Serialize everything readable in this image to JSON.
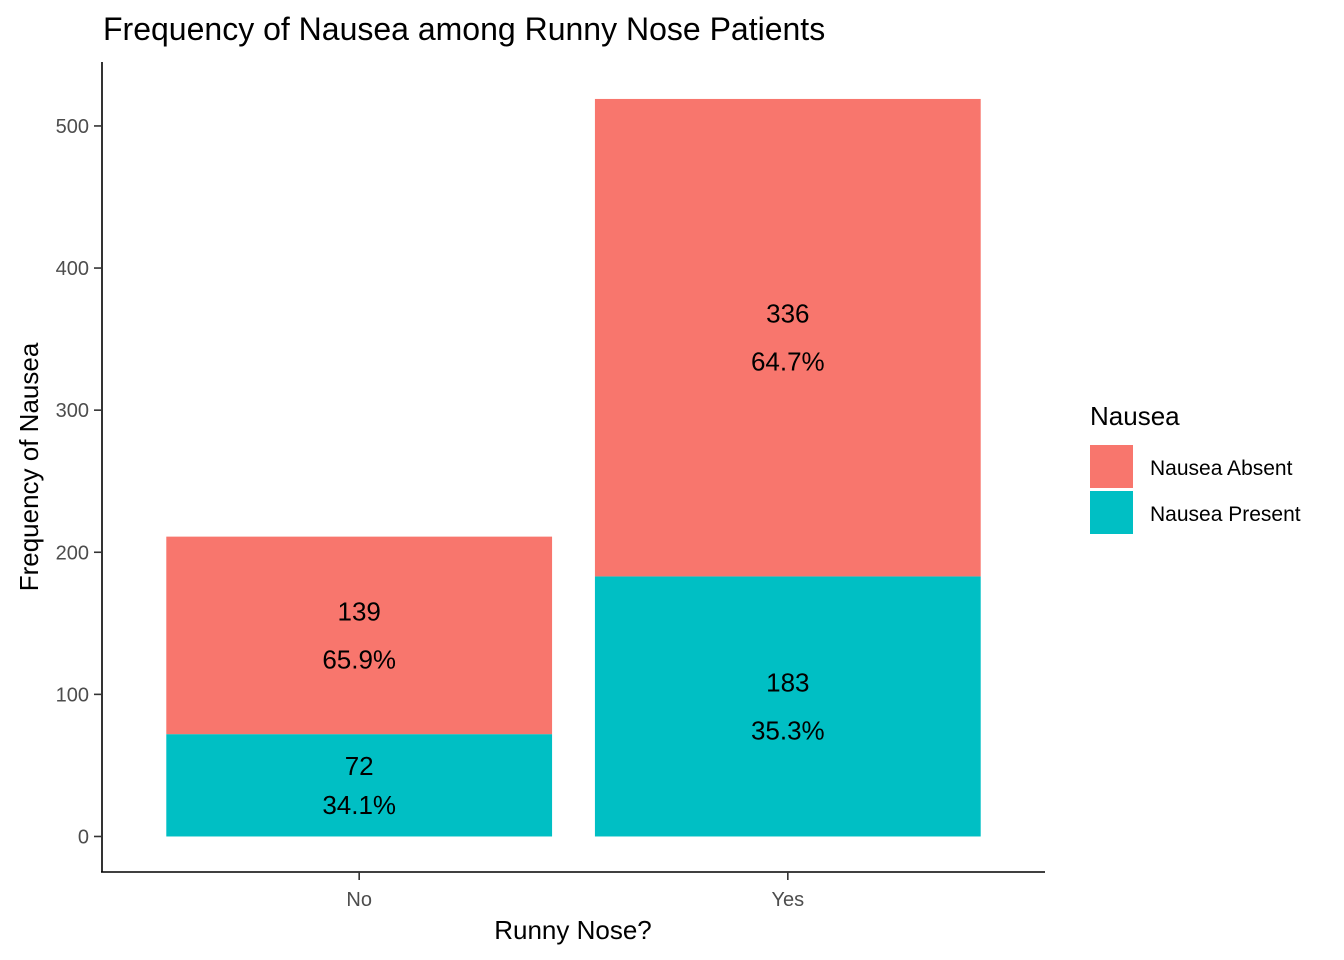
{
  "chart_data": {
    "type": "bar",
    "stacked": true,
    "title": "Frequency of Nausea among Runny Nose Patients",
    "xlabel": "Runny Nose?",
    "ylabel": "Frequency of Nausea",
    "categories": [
      "No",
      "Yes"
    ],
    "ylim": [
      -25,
      545
    ],
    "yticks": [
      "0",
      "100",
      "200",
      "300",
      "400",
      "500"
    ],
    "series": [
      {
        "name": "Nausea Present",
        "color": "#00BFC4",
        "values": [
          72,
          183
        ],
        "value_labels": [
          "72",
          "183"
        ],
        "percent_labels": [
          "34.1%",
          "35.3%"
        ]
      },
      {
        "name": "Nausea Absent",
        "color": "#F8766D",
        "values": [
          139,
          336
        ],
        "value_labels": [
          "139",
          "336"
        ],
        "percent_labels": [
          "65.9%",
          "64.7%"
        ]
      }
    ],
    "legend": {
      "title": "Nausea",
      "position": "right",
      "entries": [
        "Nausea Absent",
        "Nausea Present"
      ]
    },
    "grid": false
  }
}
